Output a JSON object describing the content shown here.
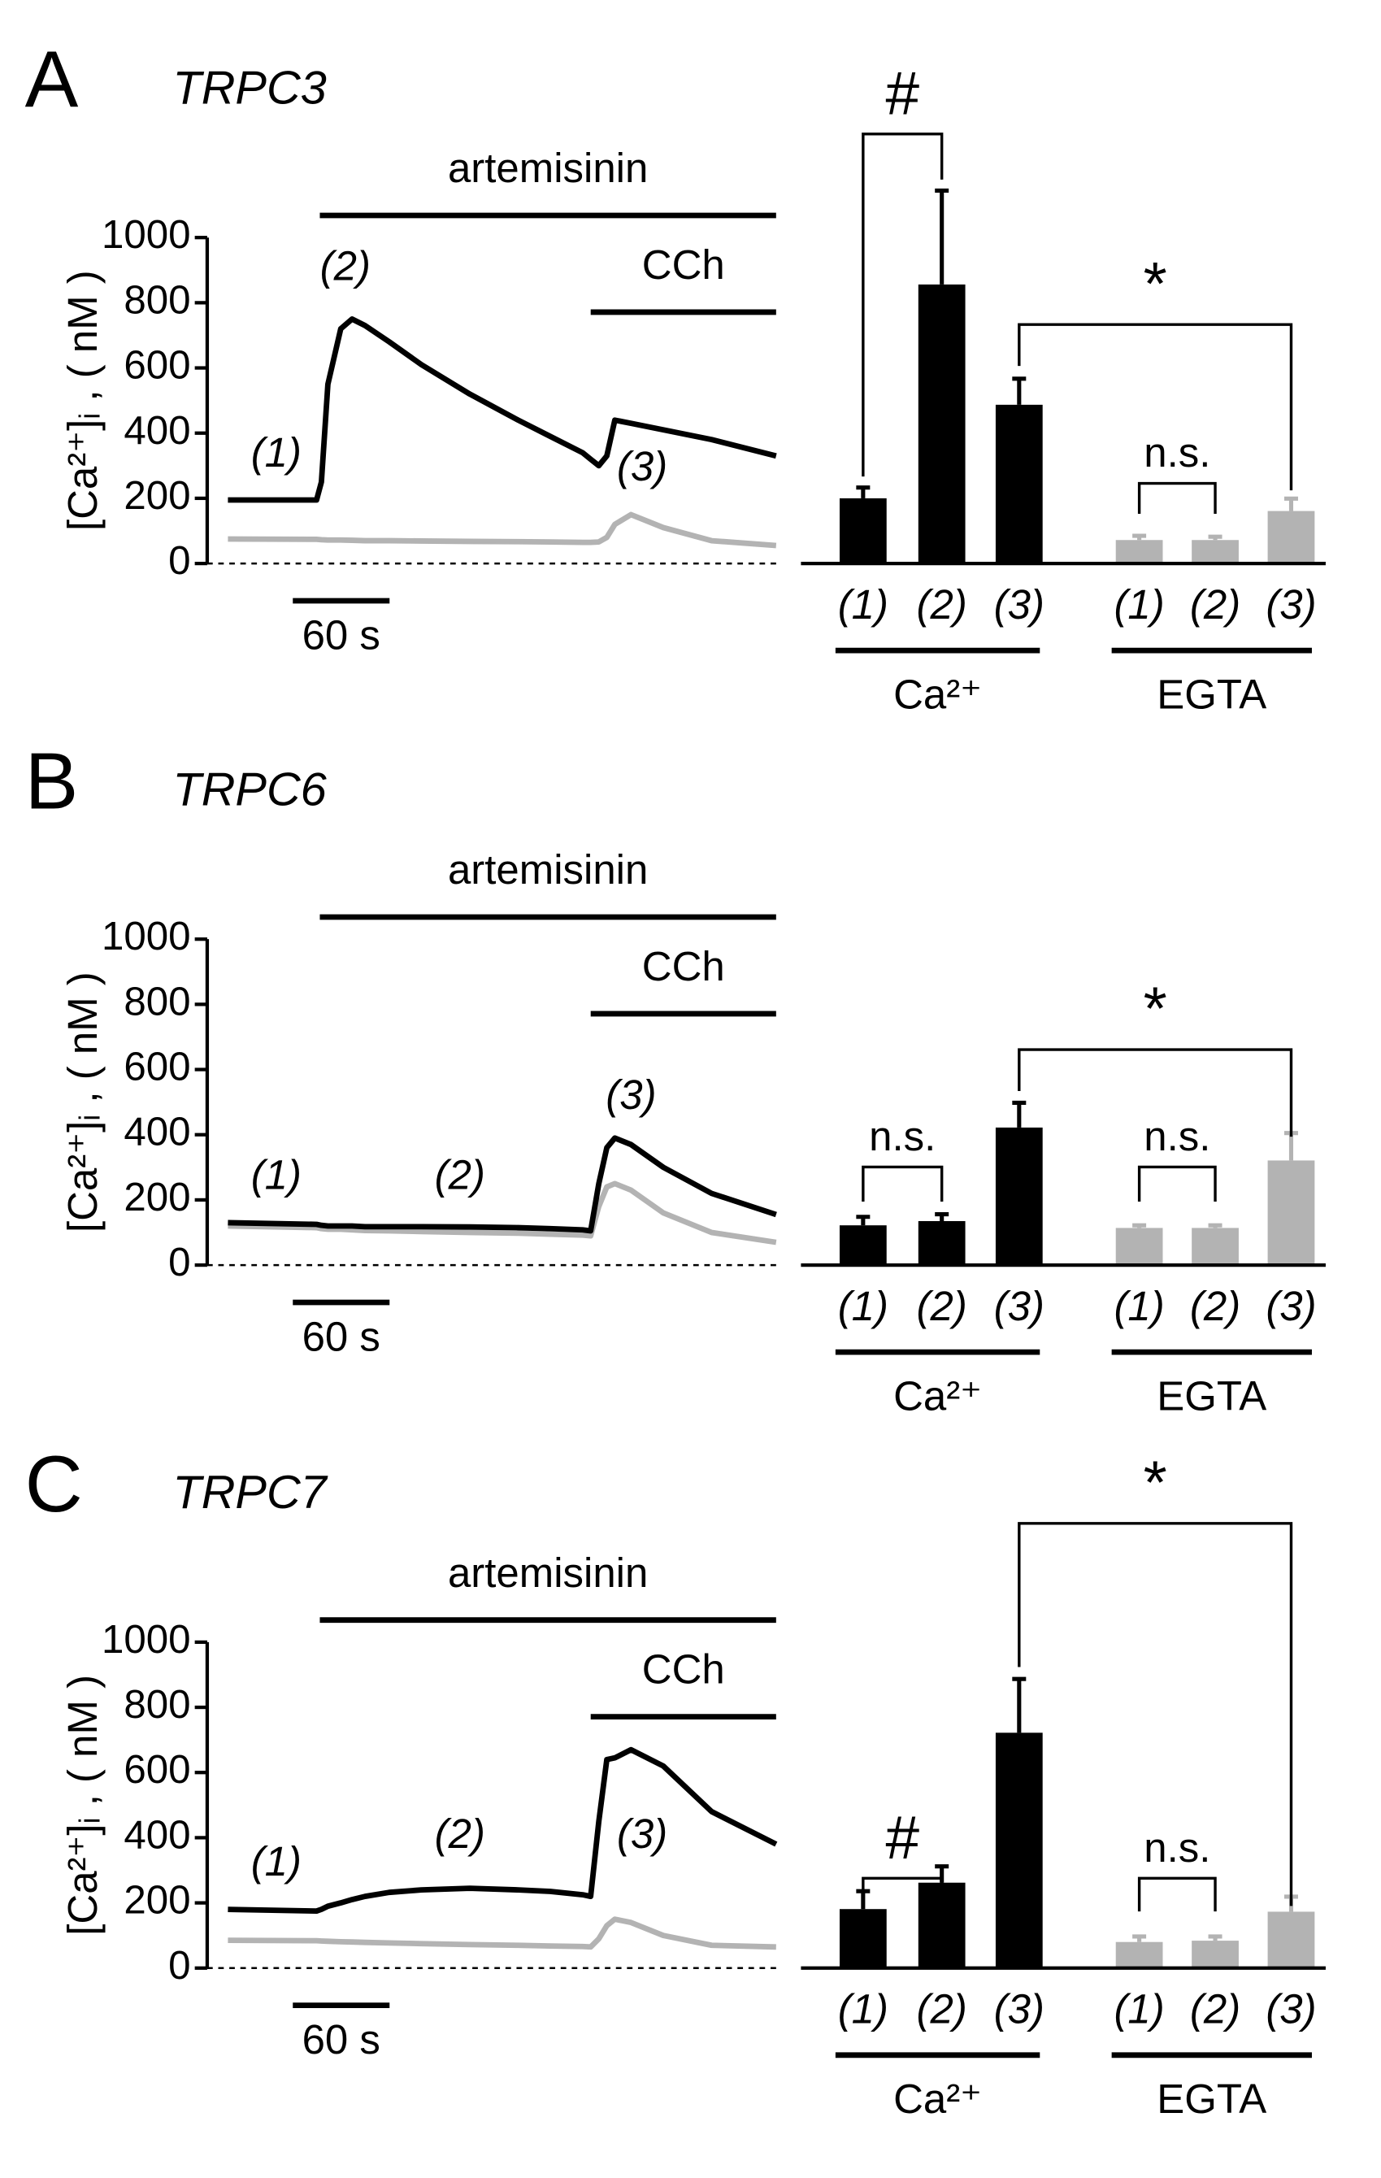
{
  "chart_data": [
    {
      "type": "line",
      "label": "A",
      "title": "TRPC3",
      "ylabel": "[Ca²⁺]ᵢ , ( nM )",
      "ylim": [
        0,
        1000
      ],
      "yticks": [
        0,
        200,
        400,
        600,
        800,
        1000
      ],
      "xlim": [
        0,
        340
      ],
      "x": [
        0,
        55,
        58,
        62,
        70,
        77,
        85,
        100,
        120,
        150,
        180,
        200,
        220,
        225,
        230,
        235,
        240,
        250,
        270,
        300,
        340
      ],
      "series": [
        {
          "color": "#000000",
          "values": [
            195,
            195,
            250,
            550,
            720,
            750,
            730,
            680,
            610,
            520,
            440,
            390,
            340,
            320,
            300,
            330,
            440,
            430,
            410,
            380,
            330
          ]
        },
        {
          "color": "#b3b3b3",
          "values": [
            75,
            74,
            73,
            72,
            72,
            71,
            70,
            70,
            69,
            68,
            67,
            66,
            65,
            65,
            66,
            80,
            120,
            150,
            110,
            70,
            55
          ]
        }
      ],
      "treatments": [
        {
          "label": "artemisinin",
          "start": 57,
          "end": 340
        },
        {
          "label": "CCh",
          "start": 225,
          "end": 340
        }
      ],
      "scale_bar": {
        "value": 60,
        "label": "60 s"
      },
      "trace_labels": [
        "(1)",
        "(2)",
        "(3)"
      ]
    },
    {
      "type": "bar",
      "categories": [
        "(1)",
        "(2)",
        "(3)",
        "(1)",
        "(2)",
        "(3)"
      ],
      "groups": [
        "Ca²⁺",
        "EGTA"
      ],
      "ylim": [
        0,
        1000
      ],
      "values": [
        200,
        856,
        487,
        72,
        72,
        161
      ],
      "errors": [
        33,
        288,
        80,
        13,
        10,
        38
      ],
      "colors": [
        "#000000",
        "#000000",
        "#000000",
        "#b3b3b3",
        "#b3b3b3",
        "#b3b3b3"
      ],
      "annotations": [
        "#",
        "*",
        "n.s."
      ]
    },
    {
      "type": "line",
      "label": "B",
      "title": "TRPC6",
      "ylabel": "[Ca²⁺]ᵢ , ( nM )",
      "ylim": [
        0,
        1000
      ],
      "yticks": [
        0,
        200,
        400,
        600,
        800,
        1000
      ],
      "xlim": [
        0,
        340
      ],
      "x": [
        0,
        55,
        58,
        62,
        70,
        77,
        85,
        100,
        120,
        150,
        180,
        200,
        220,
        225,
        230,
        235,
        240,
        250,
        270,
        300,
        340
      ],
      "series": [
        {
          "color": "#000000",
          "values": [
            130,
            125,
            122,
            120,
            120,
            120,
            118,
            118,
            118,
            117,
            115,
            112,
            108,
            105,
            250,
            360,
            390,
            370,
            300,
            220,
            155
          ]
        },
        {
          "color": "#b3b3b3",
          "values": [
            120,
            115,
            112,
            110,
            110,
            108,
            106,
            105,
            103,
            100,
            98,
            95,
            92,
            90,
            180,
            240,
            250,
            230,
            160,
            100,
            70
          ]
        }
      ],
      "treatments": [
        {
          "label": "artemisinin",
          "start": 57,
          "end": 340
        },
        {
          "label": "CCh",
          "start": 225,
          "end": 340
        }
      ],
      "scale_bar": {
        "value": 60,
        "label": "60 s"
      },
      "trace_labels": [
        "(1)",
        "(2)",
        "(3)"
      ]
    },
    {
      "type": "bar",
      "categories": [
        "(1)",
        "(2)",
        "(3)",
        "(1)",
        "(2)",
        "(3)"
      ],
      "groups": [
        "Ca²⁺",
        "EGTA"
      ],
      "ylim": [
        0,
        1000
      ],
      "values": [
        122,
        135,
        422,
        114,
        114,
        321
      ],
      "errors": [
        26,
        21,
        76,
        8,
        8,
        84
      ],
      "colors": [
        "#000000",
        "#000000",
        "#000000",
        "#b3b3b3",
        "#b3b3b3",
        "#b3b3b3"
      ],
      "annotations": [
        "n.s.",
        "*",
        "n.s."
      ]
    },
    {
      "type": "line",
      "label": "C",
      "title": "TRPC7",
      "ylabel": "[Ca²⁺]ᵢ , ( nM )",
      "ylim": [
        0,
        1000
      ],
      "yticks": [
        0,
        200,
        400,
        600,
        800,
        1000
      ],
      "xlim": [
        0,
        340
      ],
      "x": [
        0,
        55,
        58,
        62,
        70,
        77,
        85,
        100,
        120,
        150,
        180,
        200,
        220,
        225,
        230,
        235,
        240,
        250,
        270,
        300,
        340
      ],
      "series": [
        {
          "color": "#000000",
          "values": [
            180,
            175,
            180,
            190,
            200,
            210,
            220,
            232,
            240,
            245,
            240,
            235,
            225,
            220,
            450,
            640,
            645,
            670,
            620,
            480,
            380
          ]
        },
        {
          "color": "#b3b3b3",
          "values": [
            85,
            84,
            83,
            82,
            81,
            80,
            79,
            77,
            75,
            72,
            70,
            68,
            66,
            65,
            90,
            130,
            150,
            140,
            100,
            70,
            65
          ]
        }
      ],
      "treatments": [
        {
          "label": "artemisinin",
          "start": 57,
          "end": 340
        },
        {
          "label": "CCh",
          "start": 225,
          "end": 340
        }
      ],
      "scale_bar": {
        "value": 60,
        "label": "60 s"
      },
      "trace_labels": [
        "(1)",
        "(2)",
        "(3)"
      ]
    },
    {
      "type": "bar",
      "categories": [
        "(1)",
        "(2)",
        "(3)",
        "(1)",
        "(2)",
        "(3)"
      ],
      "groups": [
        "Ca²⁺",
        "EGTA"
      ],
      "ylim": [
        0,
        1000
      ],
      "values": [
        181,
        262,
        722,
        80,
        84,
        173
      ],
      "errors": [
        55,
        50,
        165,
        17,
        13,
        46
      ],
      "colors": [
        "#000000",
        "#000000",
        "#000000",
        "#b3b3b3",
        "#b3b3b3",
        "#b3b3b3"
      ],
      "annotations": [
        "#",
        "*",
        "n.s."
      ]
    }
  ]
}
